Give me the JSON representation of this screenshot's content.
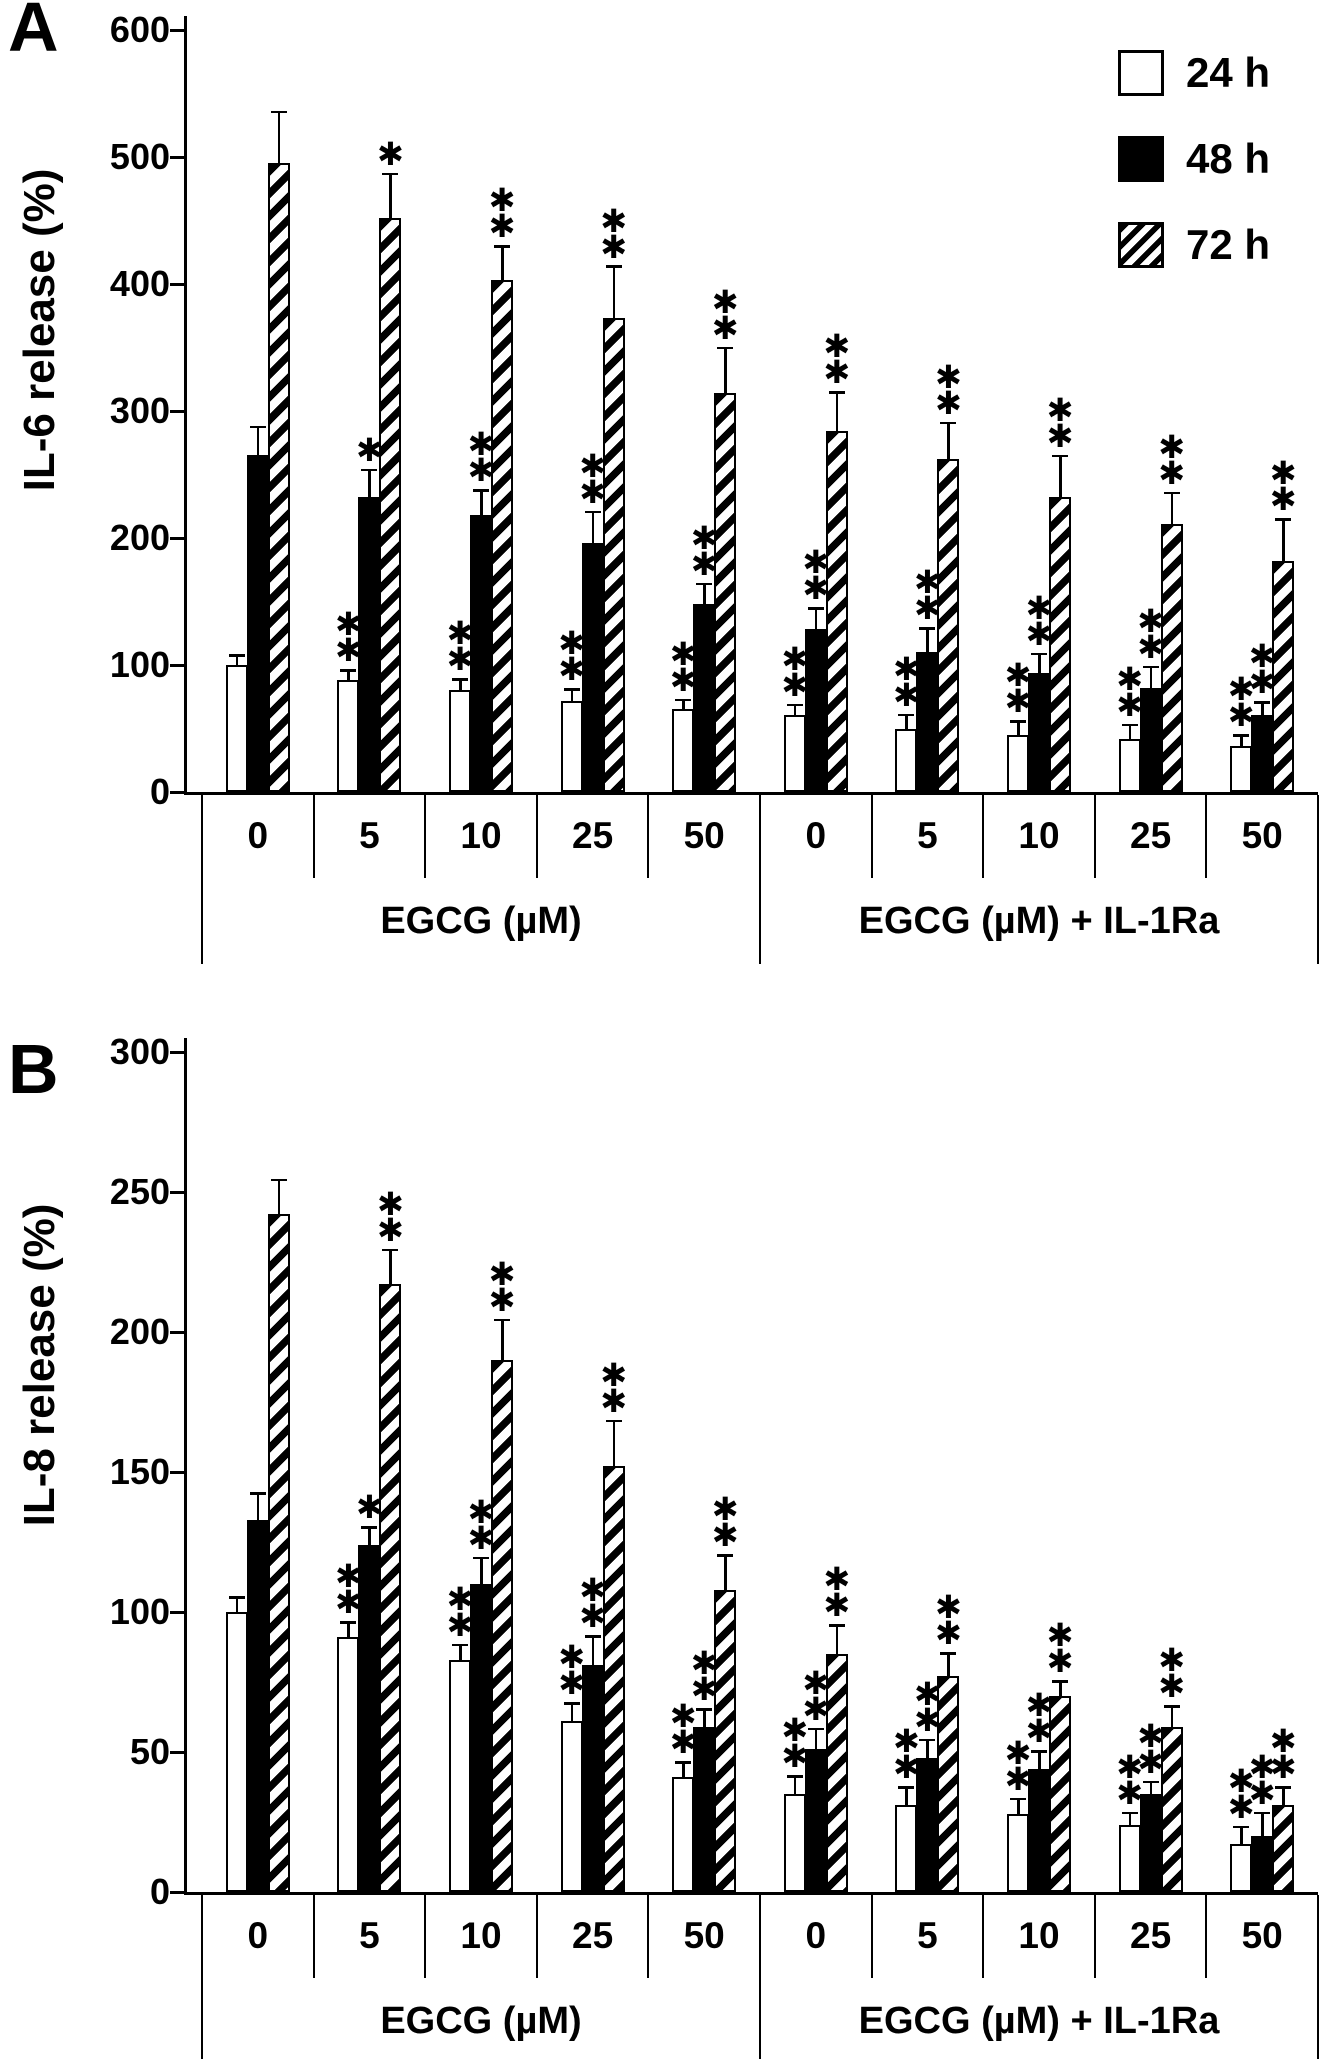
{
  "legend": {
    "items": [
      {
        "label": "24 h",
        "swatch": "white"
      },
      {
        "label": "48 h",
        "swatch": "black"
      },
      {
        "label": "72 h",
        "swatch": "hatched"
      }
    ],
    "position": "top-right"
  },
  "chart_data": [
    {
      "type": "bar",
      "panel_label": "A",
      "ylabel": "IL-6 release (%)",
      "ylim": [
        0,
        600
      ],
      "yticks": [
        0,
        100,
        200,
        300,
        400,
        500,
        600
      ],
      "grid": false,
      "group_labels": [
        "0",
        "5",
        "10",
        "25",
        "50",
        "0",
        "5",
        "10",
        "25",
        "50"
      ],
      "section_labels": [
        "EGCG (µM)",
        "EGCG (µM) + IL-1Ra"
      ],
      "series": [
        {
          "name": "24 h",
          "style": "white",
          "values": [
            100,
            88,
            80,
            72,
            65,
            61,
            50,
            45,
            42,
            36
          ],
          "errors": [
            7,
            7,
            8,
            8,
            7,
            7,
            10,
            10,
            10,
            8
          ],
          "sig": [
            "",
            "**",
            "**",
            "**",
            "**",
            "**",
            "**",
            "**",
            "**",
            "**"
          ]
        },
        {
          "name": "48 h",
          "style": "black",
          "values": [
            265,
            232,
            218,
            196,
            148,
            128,
            110,
            94,
            82,
            61
          ],
          "errors": [
            22,
            21,
            19,
            24,
            15,
            16,
            18,
            14,
            16,
            9
          ],
          "sig": [
            "",
            "*",
            "**",
            "**",
            "**",
            "**",
            "**",
            "**",
            "**",
            "**"
          ]
        },
        {
          "name": "72 h",
          "style": "hatched",
          "values": [
            495,
            452,
            403,
            373,
            314,
            284,
            262,
            232,
            211,
            182
          ],
          "errors": [
            40,
            34,
            26,
            40,
            35,
            30,
            28,
            32,
            24,
            32
          ],
          "sig": [
            "",
            "*",
            "**",
            "**",
            "**",
            "**",
            "**",
            "**",
            "**",
            "**"
          ]
        }
      ]
    },
    {
      "type": "bar",
      "panel_label": "B",
      "ylabel": "IL-8 release (%)",
      "ylim": [
        0,
        300
      ],
      "yticks": [
        0,
        50,
        100,
        150,
        200,
        250,
        300
      ],
      "grid": false,
      "group_labels": [
        "0",
        "5",
        "10",
        "25",
        "50",
        "0",
        "5",
        "10",
        "25",
        "50"
      ],
      "section_labels": [
        "EGCG (µM)",
        "EGCG (µM) + IL-1Ra"
      ],
      "series": [
        {
          "name": "24 h",
          "style": "white",
          "values": [
            100,
            91,
            83,
            61,
            41,
            35,
            31,
            28,
            24,
            17
          ],
          "errors": [
            5,
            5,
            5,
            6,
            5,
            6,
            6,
            5,
            4,
            6
          ],
          "sig": [
            "",
            "**",
            "**",
            "**",
            "**",
            "**",
            "**",
            "**",
            "**",
            "**"
          ]
        },
        {
          "name": "48 h",
          "style": "black",
          "values": [
            133,
            124,
            110,
            81,
            59,
            51,
            48,
            44,
            35,
            20
          ],
          "errors": [
            9,
            6,
            9,
            10,
            6,
            7,
            6,
            6,
            4,
            8
          ],
          "sig": [
            "",
            "*",
            "**",
            "**",
            "**",
            "**",
            "**",
            "**",
            "**",
            "**"
          ]
        },
        {
          "name": "72 h",
          "style": "hatched",
          "values": [
            242,
            217,
            190,
            152,
            108,
            85,
            77,
            70,
            59,
            31
          ],
          "errors": [
            12,
            12,
            14,
            16,
            12,
            10,
            8,
            5,
            7,
            6
          ],
          "sig": [
            "",
            "**",
            "**",
            "**",
            "**",
            "**",
            "**",
            "**",
            "**",
            "**"
          ]
        }
      ]
    }
  ]
}
